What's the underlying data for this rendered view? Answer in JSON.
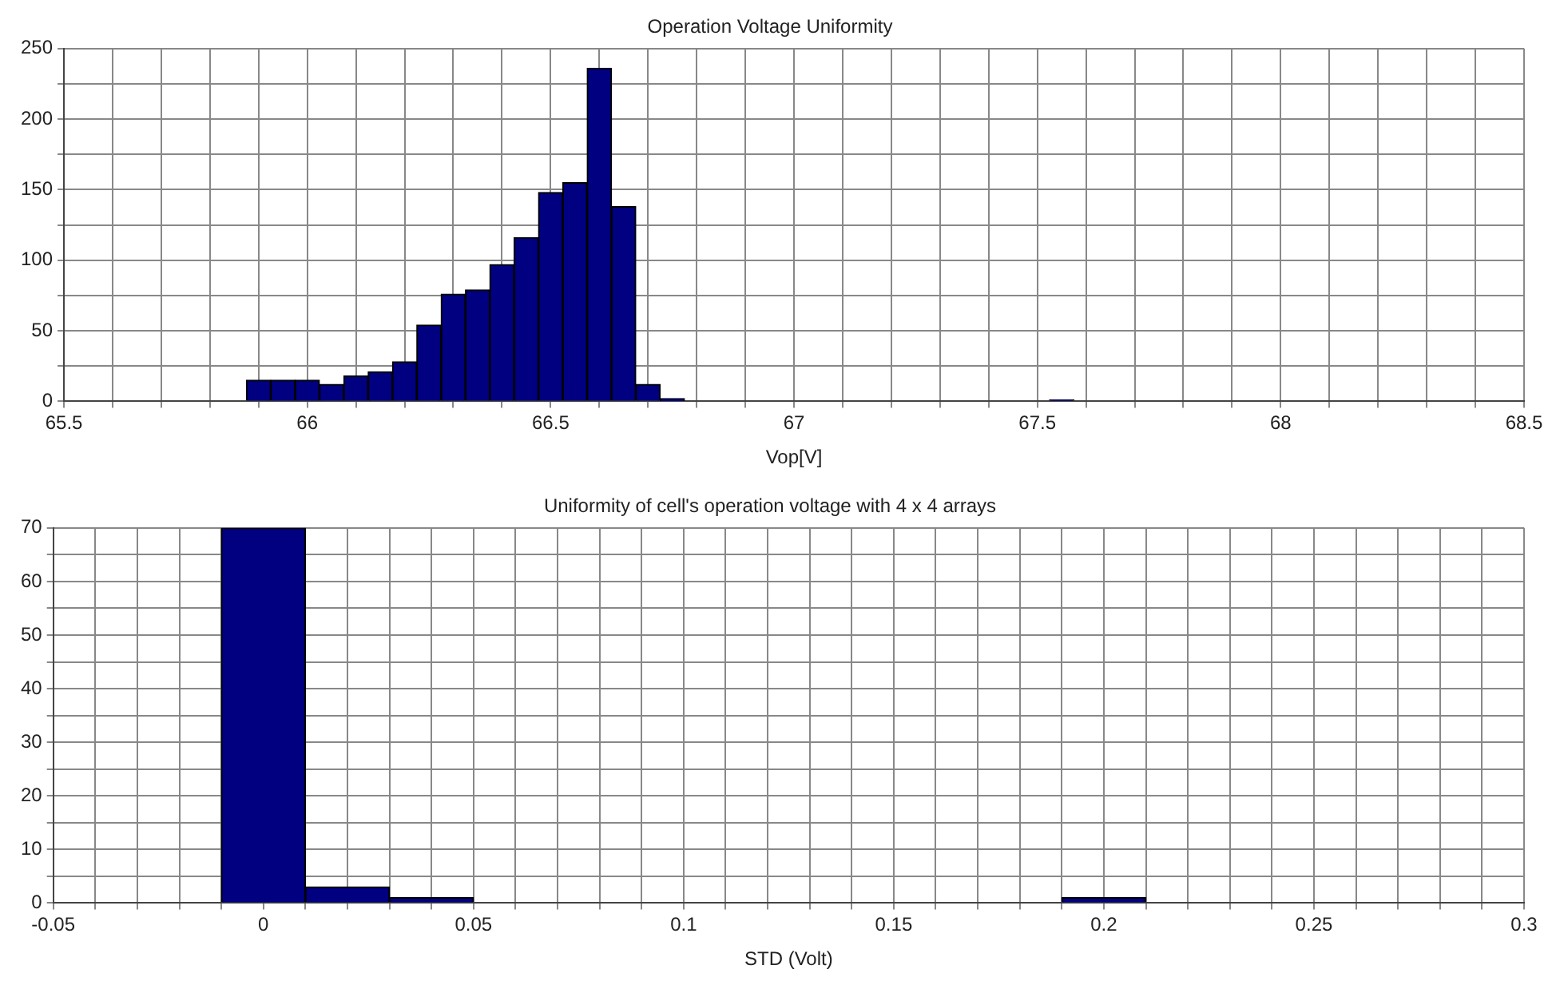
{
  "chart_data": [
    {
      "type": "histogram",
      "title": "Operation Voltage Uniformity",
      "xlabel": "Vop[V]",
      "color": "#000080",
      "bins": [
        65.875,
        65.925,
        65.975,
        66.025,
        66.075,
        66.125,
        66.175,
        66.225,
        66.275,
        66.325,
        66.375,
        66.425,
        66.475,
        66.525,
        66.575,
        66.625,
        66.675,
        66.725,
        66.775,
        66.825,
        66.875,
        66.925,
        66.975,
        67.025,
        67.075,
        67.125,
        67.175,
        67.225,
        67.275,
        67.325,
        67.375,
        67.425,
        67.475,
        67.525,
        67.575
      ],
      "values": [
        15,
        15,
        15,
        12,
        18,
        21,
        28,
        54,
        76,
        79,
        97,
        116,
        148,
        155,
        236,
        138,
        12,
        2,
        0,
        0,
        0,
        0,
        0,
        0,
        0,
        0,
        0,
        0,
        0,
        0,
        0,
        0,
        0,
        1
      ],
      "xlim": [
        65.5,
        68.5
      ],
      "xticks": [
        65.5,
        {
          "value": 65.6,
          "label": null
        },
        {
          "value": 65.7,
          "label": null
        },
        {
          "value": 65.8,
          "label": null
        },
        {
          "value": 65.9,
          "label": null
        },
        66,
        {
          "value": 66.1,
          "label": null
        },
        {
          "value": 66.2,
          "label": null
        },
        {
          "value": 66.3,
          "label": null
        },
        {
          "value": 66.4,
          "label": null
        },
        66.5,
        {
          "value": 66.6,
          "label": null
        },
        {
          "value": 66.7,
          "label": null
        },
        {
          "value": 66.8,
          "label": null
        },
        {
          "value": 66.9,
          "label": null
        },
        67,
        {
          "value": 67.1,
          "label": null
        },
        {
          "value": 67.2,
          "label": null
        },
        {
          "value": 67.3,
          "label": null
        },
        {
          "value": 67.4,
          "label": null
        },
        67.5,
        {
          "value": 67.6,
          "label": null
        },
        {
          "value": 67.7,
          "label": null
        },
        {
          "value": 67.8,
          "label": null
        },
        {
          "value": 67.9,
          "label": null
        },
        68,
        {
          "value": 68.1,
          "label": null
        },
        {
          "value": 68.2,
          "label": null
        },
        {
          "value": 68.3,
          "label": null
        },
        {
          "value": 68.4,
          "label": null
        },
        68.5
      ],
      "ylim": [
        0,
        250
      ],
      "yticks": [
        0,
        {
          "value": 25,
          "label": null
        },
        50,
        {
          "value": 75,
          "label": null
        },
        100,
        {
          "value": 125,
          "label": null
        },
        150,
        {
          "value": 175,
          "label": null
        },
        200,
        {
          "value": 225,
          "label": null
        },
        250
      ],
      "grid": true
    },
    {
      "type": "histogram",
      "title": "Uniformity of cell's operation voltage with 4 x 4 arrays",
      "xlabel": "STD (Volt)",
      "color": "#000080",
      "bins": [
        -0.01,
        0.01,
        0.03,
        0.05,
        0.07,
        0.09,
        0.11,
        0.13,
        0.15,
        0.17,
        0.19,
        0.21
      ],
      "values": [
        70,
        3,
        1,
        0,
        0,
        0,
        0,
        0,
        0,
        0,
        1
      ],
      "xlim": [
        -0.05,
        0.3
      ],
      "xticks": [
        -0.05,
        {
          "value": -0.04,
          "label": null
        },
        {
          "value": -0.03,
          "label": null
        },
        {
          "value": -0.02,
          "label": null
        },
        {
          "value": -0.01,
          "label": null
        },
        0,
        {
          "value": 0.01,
          "label": null
        },
        {
          "value": 0.02,
          "label": null
        },
        {
          "value": 0.03,
          "label": null
        },
        {
          "value": 0.04,
          "label": null
        },
        0.05,
        {
          "value": 0.06,
          "label": null
        },
        {
          "value": 0.07,
          "label": null
        },
        {
          "value": 0.08,
          "label": null
        },
        {
          "value": 0.09,
          "label": null
        },
        0.1,
        {
          "value": 0.11,
          "label": null
        },
        {
          "value": 0.12,
          "label": null
        },
        {
          "value": 0.13,
          "label": null
        },
        {
          "value": 0.14,
          "label": null
        },
        0.15,
        {
          "value": 0.16,
          "label": null
        },
        {
          "value": 0.17,
          "label": null
        },
        {
          "value": 0.18,
          "label": null
        },
        {
          "value": 0.19,
          "label": null
        },
        0.2,
        {
          "value": 0.21,
          "label": null
        },
        {
          "value": 0.22,
          "label": null
        },
        {
          "value": 0.23,
          "label": null
        },
        {
          "value": 0.24,
          "label": null
        },
        0.25,
        {
          "value": 0.26,
          "label": null
        },
        {
          "value": 0.27,
          "label": null
        },
        {
          "value": 0.28,
          "label": null
        },
        {
          "value": 0.29,
          "label": null
        },
        0.3
      ],
      "ylim": [
        0,
        70
      ],
      "yticks": [
        0,
        {
          "value": 5,
          "label": null
        },
        10,
        {
          "value": 15,
          "label": null
        },
        20,
        {
          "value": 25,
          "label": null
        },
        30,
        {
          "value": 35,
          "label": null
        },
        40,
        {
          "value": 45,
          "label": null
        },
        50,
        {
          "value": 55,
          "label": null
        },
        60,
        {
          "value": 65,
          "label": null
        },
        70
      ],
      "grid": true
    }
  ]
}
